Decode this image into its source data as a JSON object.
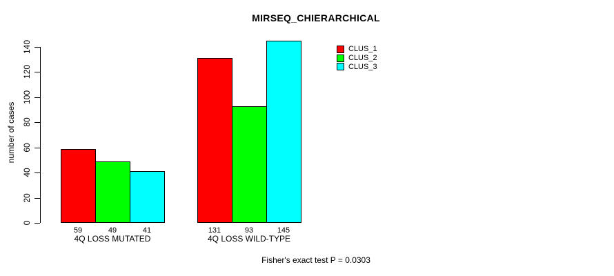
{
  "chart_data": {
    "type": "bar",
    "title": "MIRSEQ_CHIERARCHICAL",
    "ylabel": "number of cases",
    "xlabel": "",
    "categories": [
      "4Q LOSS MUTATED",
      "4Q LOSS WILD-TYPE"
    ],
    "series": [
      {
        "name": "CLUS_1",
        "color": "#FF0000",
        "values": [
          59,
          131
        ]
      },
      {
        "name": "CLUS_2",
        "color": "#00FF00",
        "values": [
          49,
          93
        ]
      },
      {
        "name": "CLUS_3",
        "color": "#00FFFF",
        "values": [
          41,
          145
        ]
      }
    ],
    "yticks": [
      0,
      20,
      40,
      60,
      80,
      100,
      120,
      140
    ],
    "axis_range": [
      0,
      140
    ],
    "grid": false,
    "legend_position": "top-right",
    "bar_border_color": "#000000",
    "annotation": "Fisher's exact test P = 0.0303"
  }
}
